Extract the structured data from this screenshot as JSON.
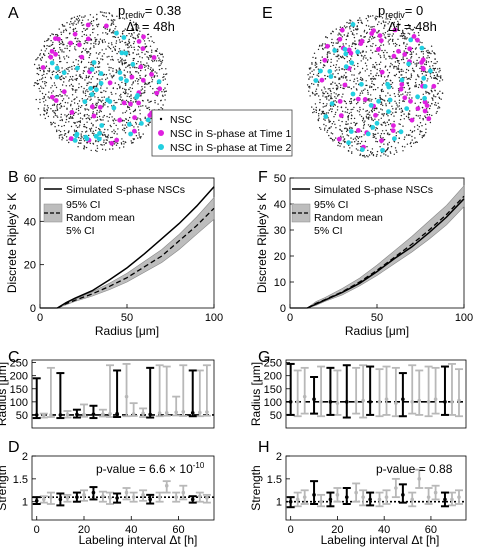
{
  "panel_letters": {
    "A": "A",
    "B": "B",
    "C": "C",
    "D": "D",
    "E": "E",
    "F": "F",
    "G": "G",
    "H": "H"
  },
  "panel_A": {
    "p_label": "p",
    "p_sub": "rediv",
    "p_value": "= 0.38",
    "dt_label": "Δt = 48h"
  },
  "panel_E": {
    "p_label": "p",
    "p_sub": "rediv",
    "p_value": "= 0",
    "dt_label": "Δt = 48h"
  },
  "scatter_legend": {
    "items": [
      {
        "label": "NSC",
        "color": "#000000"
      },
      {
        "label": "NSC in S-phase at Time 1",
        "color": "#e020e0"
      },
      {
        "label": "NSC in S-phase at Time 2",
        "color": "#22cfe0"
      }
    ]
  },
  "colors": {
    "magenta": "#e020e0",
    "cyan": "#22cfe0",
    "ci_fill": "#bdbdbd",
    "grey_bar": "#b8b8b8"
  },
  "ripley_legend": {
    "simulated": "Simulated S-phase NSCs",
    "ci95": "95% CI",
    "random_mean": "Random mean",
    "ci5": "5% CI"
  },
  "chart_data": [
    {
      "type": "line",
      "panel": "B",
      "xlabel": "Radius [μm]",
      "ylabel": "Discrete Ripley's K",
      "xlim": [
        0,
        100
      ],
      "ylim": [
        0,
        60
      ],
      "xticks": [
        0,
        50,
        100
      ],
      "yticks": [
        0,
        20,
        40,
        60
      ],
      "series": [
        {
          "name": "Simulated S-phase NSCs",
          "x": [
            10,
            15,
            20,
            30,
            40,
            50,
            60,
            70,
            80,
            90,
            100
          ],
          "y": [
            0,
            2.5,
            4.5,
            8,
            13,
            18.5,
            25,
            32,
            39,
            47,
            56
          ]
        },
        {
          "name": "Random mean",
          "x": [
            10,
            15,
            20,
            30,
            40,
            50,
            60,
            70,
            80,
            90,
            100
          ],
          "y": [
            0,
            2,
            3.5,
            6.5,
            10,
            14,
            19,
            24,
            31,
            38,
            46
          ]
        },
        {
          "name": "95% CI",
          "x": [
            10,
            15,
            20,
            30,
            40,
            50,
            60,
            70,
            80,
            90,
            100
          ],
          "y": [
            0,
            2.5,
            4,
            7.5,
            11.5,
            16,
            21.5,
            27,
            34,
            42,
            51
          ]
        },
        {
          "name": "5% CI",
          "x": [
            10,
            15,
            20,
            30,
            40,
            50,
            60,
            70,
            80,
            90,
            100
          ],
          "y": [
            0,
            1.5,
            3,
            5.5,
            8.5,
            12,
            16.5,
            21,
            27,
            34,
            41
          ]
        }
      ]
    },
    {
      "type": "line",
      "panel": "F",
      "xlabel": "Radius [μm]",
      "ylabel": "Discrete Ripley's K",
      "xlim": [
        0,
        100
      ],
      "ylim": [
        0,
        50
      ],
      "xticks": [
        0,
        50,
        100
      ],
      "yticks": [
        0,
        10,
        20,
        30,
        40,
        50
      ],
      "series": [
        {
          "name": "Simulated S-phase NSCs",
          "x": [
            10,
            15,
            20,
            30,
            40,
            50,
            60,
            70,
            80,
            90,
            100
          ],
          "y": [
            0,
            1.5,
            3,
            6,
            9.5,
            14,
            19,
            23.5,
            29,
            35,
            42
          ]
        },
        {
          "name": "Random mean",
          "x": [
            10,
            15,
            20,
            30,
            40,
            50,
            60,
            70,
            80,
            90,
            100
          ],
          "y": [
            0,
            1.8,
            3.2,
            6.2,
            10,
            14.5,
            19.5,
            24.5,
            30,
            36,
            43
          ]
        },
        {
          "name": "95% CI",
          "x": [
            10,
            15,
            20,
            30,
            40,
            50,
            60,
            70,
            80,
            90,
            100
          ],
          "y": [
            0,
            2.5,
            4,
            7.5,
            11.5,
            16.5,
            22,
            27.5,
            33.5,
            39.5,
            47
          ]
        },
        {
          "name": "5% CI",
          "x": [
            10,
            15,
            20,
            30,
            40,
            50,
            60,
            70,
            80,
            90,
            100
          ],
          "y": [
            0,
            1,
            2.5,
            5,
            8.5,
            12.5,
            17,
            21.5,
            26.5,
            32,
            39
          ]
        }
      ]
    },
    {
      "type": "errorbar",
      "panel": "C",
      "ylabel": "Radius [μm]",
      "xlim": [
        -2,
        75
      ],
      "ylim": [
        0,
        260
      ],
      "yticks": [
        50,
        100,
        150,
        200,
        250
      ],
      "xticks": [],
      "reference_line": 50,
      "series": [
        {
          "name": "black",
          "x": [
            0,
            10,
            17,
            24,
            34,
            48,
            66
          ],
          "y": [
            50,
            50,
            52,
            53,
            55,
            52,
            58
          ],
          "lo": [
            38,
            38,
            40,
            38,
            42,
            40,
            45
          ],
          "hi": [
            190,
            210,
            70,
            85,
            220,
            230,
            220
          ]
        },
        {
          "name": "grey",
          "x": [
            3,
            6,
            13,
            20,
            28,
            31,
            38,
            41,
            45,
            52,
            55,
            59,
            62,
            69,
            72
          ],
          "y": [
            50,
            50,
            51,
            52,
            53,
            55,
            120,
            54,
            56,
            57,
            58,
            60,
            62,
            59,
            61
          ],
          "lo": [
            40,
            42,
            40,
            43,
            44,
            42,
            45,
            46,
            42,
            45,
            47,
            48,
            46,
            45,
            47
          ],
          "hi": [
            55,
            230,
            65,
            90,
            70,
            240,
            245,
            95,
            75,
            240,
            235,
            120,
            240,
            220,
            240
          ]
        }
      ]
    },
    {
      "type": "errorbar",
      "panel": "D",
      "ylabel": "Strength",
      "xlim": [
        -2,
        75
      ],
      "ylim": [
        0.6,
        2
      ],
      "yticks": [
        1,
        1.5,
        2
      ],
      "xticks": [
        0,
        20,
        40,
        60
      ],
      "reference_line": 1.1,
      "annotation": "p-value = 6.6 × 10",
      "annotation_exp": "-10",
      "series": [
        {
          "name": "black",
          "x": [
            0,
            10,
            17,
            24,
            34,
            48,
            66
          ],
          "y": [
            1.02,
            1.05,
            1.1,
            1.2,
            1.08,
            1.05,
            1.05
          ],
          "lo": [
            0.95,
            0.92,
            1.0,
            1.05,
            0.98,
            0.96,
            0.98
          ],
          "hi": [
            1.1,
            1.18,
            1.2,
            1.32,
            1.18,
            1.15,
            1.12
          ]
        },
        {
          "name": "grey",
          "x": [
            3,
            6,
            13,
            20,
            28,
            31,
            38,
            41,
            45,
            52,
            55,
            59,
            62,
            69,
            72
          ],
          "y": [
            1.05,
            1.1,
            1.08,
            1.15,
            1.12,
            1.08,
            1.2,
            1.1,
            1.15,
            1.1,
            1.35,
            1.1,
            1.2,
            1.12,
            1.08
          ],
          "lo": [
            0.98,
            0.95,
            1.0,
            1.02,
            1.0,
            0.95,
            1.05,
            1.0,
            1.02,
            1.0,
            1.2,
            1.0,
            1.05,
            1.0,
            0.98
          ],
          "hi": [
            1.12,
            1.2,
            1.15,
            1.25,
            1.22,
            1.2,
            1.3,
            1.2,
            1.25,
            1.2,
            1.45,
            1.2,
            1.35,
            1.2,
            1.15
          ]
        }
      ]
    },
    {
      "type": "errorbar",
      "panel": "G",
      "ylabel": "Radius [μm]",
      "xlim": [
        -2,
        75
      ],
      "ylim": [
        0,
        260
      ],
      "yticks": [
        50,
        100,
        150,
        200,
        250
      ],
      "xticks": [],
      "reference_line": 100,
      "series": [
        {
          "name": "black",
          "x": [
            0,
            10,
            17,
            24,
            34,
            48,
            66
          ],
          "y": [
            100,
            110,
            100,
            100,
            100,
            110,
            100
          ],
          "lo": [
            50,
            55,
            50,
            40,
            50,
            45,
            50
          ],
          "hi": [
            245,
            195,
            230,
            240,
            235,
            210,
            235
          ]
        },
        {
          "name": "grey",
          "x": [
            3,
            6,
            13,
            20,
            28,
            31,
            38,
            41,
            45,
            52,
            55,
            59,
            62,
            69,
            72
          ],
          "y": [
            100,
            120,
            100,
            95,
            100,
            105,
            100,
            110,
            95,
            100,
            105,
            100,
            110,
            100,
            105
          ],
          "lo": [
            45,
            55,
            45,
            50,
            55,
            40,
            45,
            50,
            45,
            55,
            50,
            45,
            55,
            50,
            45
          ],
          "hi": [
            220,
            230,
            235,
            220,
            230,
            240,
            225,
            235,
            230,
            240,
            220,
            235,
            230,
            245,
            225
          ]
        }
      ]
    },
    {
      "type": "errorbar",
      "panel": "H",
      "ylabel": "Strength",
      "xlim": [
        -2,
        75
      ],
      "ylim": [
        0.6,
        2
      ],
      "yticks": [
        1,
        1.5,
        2
      ],
      "xticks": [
        0,
        20,
        40,
        60
      ],
      "reference_line": 1.0,
      "annotation": "p-value = 0.88",
      "annotation_exp": "",
      "series": [
        {
          "name": "black",
          "x": [
            0,
            10,
            17,
            24,
            34,
            48,
            66
          ],
          "y": [
            1.0,
            1.15,
            1.05,
            1.1,
            1.05,
            1.15,
            1.05
          ],
          "lo": [
            0.88,
            0.95,
            0.9,
            0.95,
            0.92,
            0.98,
            0.9
          ],
          "hi": [
            1.1,
            1.45,
            1.2,
            1.3,
            1.2,
            1.38,
            1.2
          ]
        },
        {
          "name": "grey",
          "x": [
            3,
            6,
            13,
            20,
            28,
            31,
            38,
            41,
            45,
            52,
            55,
            59,
            62,
            69,
            72
          ],
          "y": [
            1.05,
            1.1,
            1.0,
            1.15,
            1.2,
            1.1,
            1.05,
            1.1,
            1.3,
            1.05,
            1.5,
            1.1,
            1.2,
            1.05,
            1.1
          ],
          "lo": [
            0.9,
            0.95,
            0.9,
            1.0,
            1.0,
            0.92,
            0.9,
            0.95,
            1.1,
            0.9,
            1.3,
            0.95,
            1.05,
            0.92,
            0.95
          ],
          "hi": [
            1.2,
            1.25,
            1.15,
            1.3,
            1.4,
            1.25,
            1.2,
            1.25,
            1.5,
            1.2,
            1.7,
            1.3,
            1.35,
            1.2,
            1.25
          ]
        }
      ]
    }
  ],
  "shared_xlabel": "Labeling interval Δt [h]"
}
